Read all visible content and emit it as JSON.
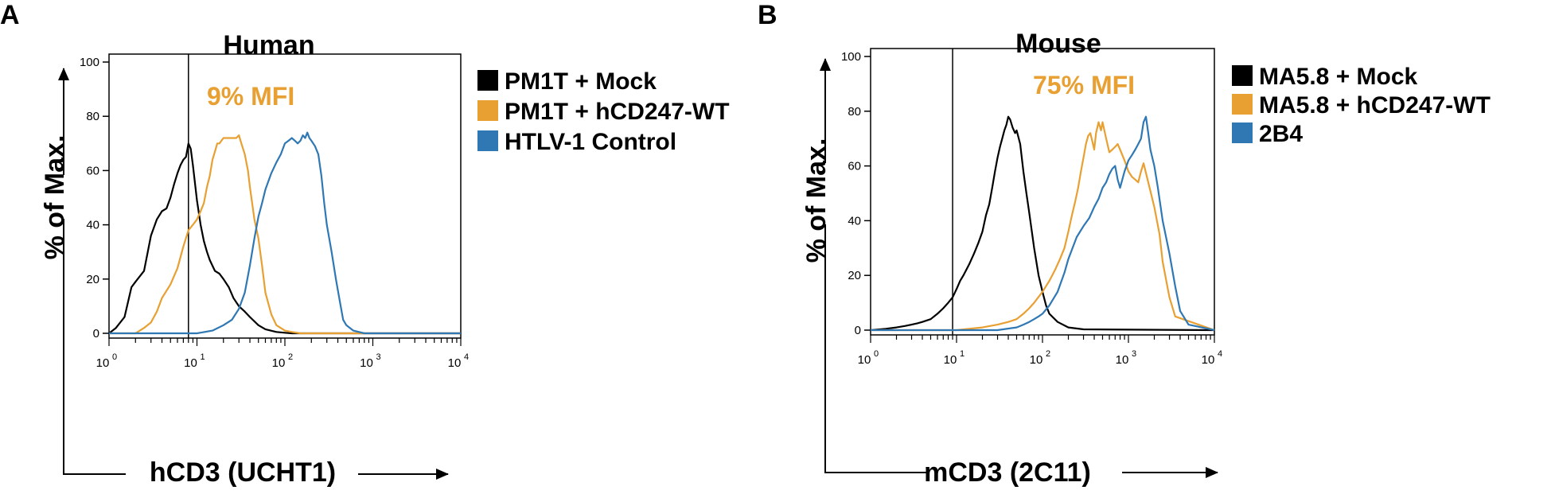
{
  "figure": {
    "panels": [
      {
        "letter": "A",
        "title": "Human"
      },
      {
        "letter": "B",
        "title": "Mouse"
      }
    ]
  },
  "chart_data": [
    {
      "type": "line",
      "panel": "A",
      "title": "Human",
      "xlabel": "hCD3 (UCHT1)",
      "ylabel": "% of Max.",
      "xscale": "log",
      "xlim": [
        1,
        10000
      ],
      "ylim": [
        0,
        100
      ],
      "yticks": [
        "0",
        "20",
        "40",
        "60",
        "80",
        "100"
      ],
      "xticks": [
        {
          "base": "10",
          "exp": "0"
        },
        {
          "base": "10",
          "exp": "1"
        },
        {
          "base": "10",
          "exp": "2"
        },
        {
          "base": "10",
          "exp": "3"
        },
        {
          "base": "10",
          "exp": "4"
        }
      ],
      "gate_x": 8,
      "annotation": "9% MFI",
      "annotation_color": "#E8A033",
      "series": [
        {
          "name": "PM1T + Mock",
          "color": "#000000",
          "x": [
            1,
            1.2,
            1.5,
            1.8,
            2,
            2.5,
            3,
            3.5,
            4,
            4.5,
            5,
            5.5,
            6,
            6.5,
            7,
            7.5,
            8,
            8.5,
            9,
            10,
            11,
            12,
            13,
            14,
            16,
            18,
            20,
            23,
            26,
            30,
            35,
            40,
            50,
            60,
            80,
            100,
            120,
            150,
            10000
          ],
          "y": [
            0,
            2,
            6,
            17,
            19,
            23,
            36,
            42,
            45,
            46,
            50,
            55,
            59,
            62,
            64,
            65,
            70,
            68,
            62,
            49,
            40,
            34,
            30,
            27,
            23,
            22,
            20,
            17,
            13,
            10,
            8,
            6,
            3,
            1.5,
            0.5,
            0.2,
            0,
            0,
            0
          ]
        },
        {
          "name": "PM1T + hCD247-WT",
          "color": "#E8A033",
          "x": [
            1,
            2,
            2.5,
            3,
            3.5,
            4,
            5,
            6,
            7,
            8,
            9,
            10,
            11,
            12,
            13,
            14,
            15,
            16,
            17,
            18,
            20,
            22,
            24,
            26,
            28,
            30,
            32,
            35,
            38,
            40,
            45,
            50,
            55,
            60,
            70,
            80,
            100,
            120,
            150,
            10000
          ],
          "y": [
            0,
            0,
            2,
            4,
            8,
            13,
            18,
            24,
            32,
            38,
            40,
            42,
            45,
            48,
            54,
            58,
            64,
            67,
            70,
            70,
            72,
            72,
            72,
            72,
            72,
            73,
            70,
            66,
            60,
            54,
            42,
            35,
            25,
            15,
            7,
            3,
            1,
            0.5,
            0,
            0
          ]
        },
        {
          "name": "HTLV-1 Control",
          "color": "#2F78B4",
          "x": [
            1,
            10,
            15,
            20,
            25,
            30,
            35,
            40,
            45,
            50,
            55,
            60,
            70,
            80,
            90,
            100,
            110,
            120,
            130,
            140,
            150,
            160,
            170,
            180,
            190,
            200,
            220,
            240,
            260,
            280,
            300,
            340,
            380,
            420,
            460,
            500,
            600,
            800,
            10000
          ],
          "y": [
            0,
            0,
            1,
            3,
            5,
            9,
            15,
            25,
            35,
            43,
            48,
            53,
            59,
            63,
            66,
            70,
            71,
            72,
            71,
            70,
            71,
            73,
            72,
            74,
            72,
            71,
            69,
            66,
            58,
            48,
            40,
            30,
            20,
            12,
            5,
            3,
            1,
            0,
            0
          ]
        }
      ]
    },
    {
      "type": "line",
      "panel": "B",
      "title": "Mouse",
      "xlabel": "mCD3 (2C11)",
      "ylabel": "% of Max.",
      "xscale": "log",
      "xlim": [
        1,
        10000
      ],
      "ylim": [
        0,
        100
      ],
      "yticks": [
        "0",
        "20",
        "40",
        "60",
        "80",
        "100"
      ],
      "xticks": [
        {
          "base": "10",
          "exp": "0"
        },
        {
          "base": "10",
          "exp": "1"
        },
        {
          "base": "10",
          "exp": "2"
        },
        {
          "base": "10",
          "exp": "3"
        },
        {
          "base": "10",
          "exp": "4"
        }
      ],
      "gate_x": 9,
      "annotation": "75% MFI",
      "annotation_color": "#E8A033",
      "series": [
        {
          "name": "MA5.8 + Mock",
          "color": "#000000",
          "x": [
            1,
            1.5,
            2,
            2.5,
            3,
            3.5,
            4,
            5,
            6,
            7,
            8,
            9,
            10,
            11,
            12,
            14,
            16,
            18,
            20,
            22,
            24,
            26,
            28,
            30,
            32,
            34,
            36,
            38,
            40,
            42,
            45,
            48,
            50,
            55,
            60,
            65,
            70,
            80,
            90,
            100,
            110,
            120,
            150,
            200,
            300,
            10000
          ],
          "y": [
            0,
            0.5,
            1,
            1.5,
            2,
            2.5,
            3,
            4,
            6,
            8,
            10,
            12,
            15,
            18,
            20,
            24,
            28,
            32,
            36,
            42,
            46,
            52,
            58,
            63,
            67,
            70,
            73,
            75,
            78,
            77,
            74,
            72,
            73,
            68,
            58,
            50,
            43,
            30,
            20,
            14,
            9,
            6,
            3,
            1,
            0.3,
            0
          ]
        },
        {
          "name": "MA5.8 + hCD247-WT",
          "color": "#E8A033",
          "x": [
            1,
            10,
            20,
            30,
            40,
            50,
            60,
            70,
            80,
            100,
            120,
            140,
            160,
            180,
            200,
            220,
            240,
            260,
            280,
            300,
            320,
            340,
            360,
            380,
            400,
            420,
            450,
            480,
            500,
            550,
            600,
            650,
            700,
            750,
            800,
            900,
            1000,
            1100,
            1200,
            1300,
            1400,
            1500,
            1700,
            2000,
            2300,
            2500,
            3000,
            3500,
            10000
          ],
          "y": [
            0,
            0,
            1,
            2,
            3,
            4,
            6,
            8,
            10,
            14,
            18,
            22,
            26,
            30,
            36,
            42,
            47,
            52,
            58,
            63,
            68,
            71,
            72,
            69,
            66,
            72,
            76,
            73,
            76,
            70,
            65,
            66,
            67,
            68,
            66,
            62,
            58,
            56,
            55,
            54,
            58,
            61,
            54,
            45,
            35,
            25,
            12,
            5,
            0
          ]
        },
        {
          "name": "2B4",
          "color": "#2F78B4",
          "x": [
            1,
            30,
            50,
            60,
            70,
            80,
            90,
            100,
            120,
            150,
            180,
            200,
            250,
            300,
            350,
            400,
            450,
            500,
            550,
            600,
            650,
            700,
            750,
            800,
            900,
            1000,
            1100,
            1200,
            1300,
            1400,
            1500,
            1600,
            1700,
            1800,
            2000,
            2200,
            2500,
            3000,
            3500,
            4000,
            5000,
            10000
          ],
          "y": [
            0,
            0,
            1,
            2,
            3,
            4,
            5,
            6,
            9,
            14,
            21,
            26,
            34,
            38,
            41,
            45,
            48,
            52,
            54,
            57,
            59,
            60,
            55,
            52,
            58,
            62,
            64,
            66,
            68,
            70,
            76,
            78,
            72,
            66,
            60,
            52,
            40,
            28,
            16,
            7,
            2,
            0
          ]
        }
      ]
    }
  ]
}
